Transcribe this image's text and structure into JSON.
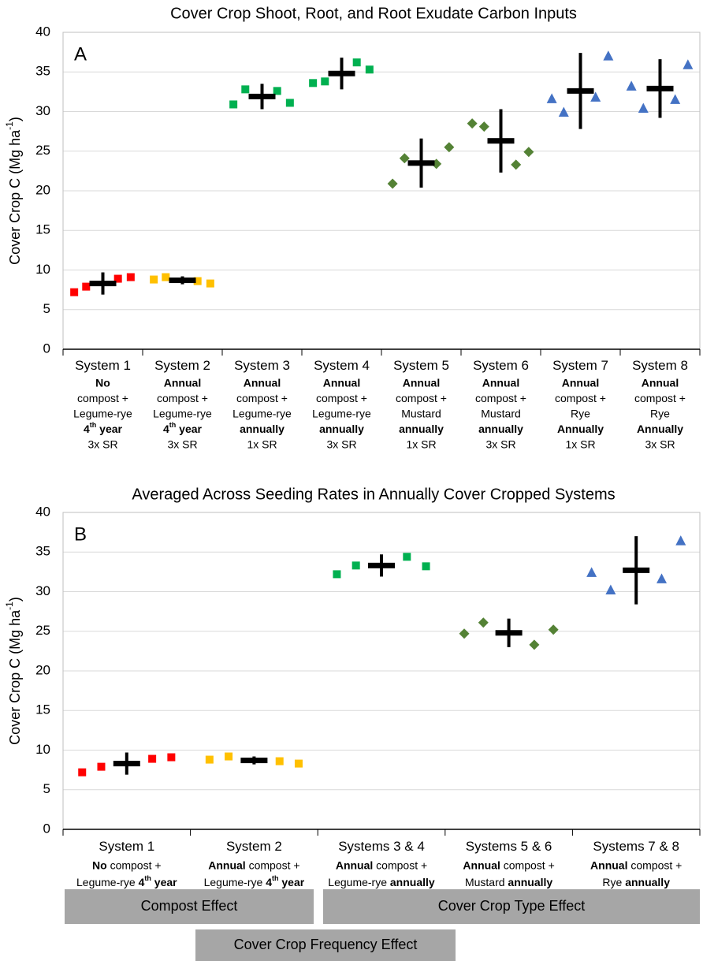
{
  "chart_data": [
    {
      "type": "strip",
      "title": "Cover Crop Shoot, Root, and Root Exudate Carbon Inputs",
      "panel_label": "A",
      "ylabel": [
        "Cover Crop C (Mg ha",
        {
          "text": "-1",
          "style": "sup"
        },
        ")"
      ],
      "ylim": [
        0,
        40
      ],
      "yticks": [
        0,
        5,
        10,
        15,
        20,
        25,
        30,
        35,
        40
      ],
      "grid": true,
      "groups": [
        {
          "label": [
            [
              "System 1"
            ],
            [
              {
                "text": "No",
                "style": "bold"
              }
            ],
            [
              "compost +"
            ],
            [
              "Legume-rye"
            ],
            [
              {
                "text": "4",
                "style": "bold"
              },
              {
                "text": "th",
                "style": "boldsup"
              },
              {
                "text": " year",
                "style": "bold"
              }
            ],
            [
              "3x SR"
            ]
          ],
          "color": "#ff0000",
          "marker": "square",
          "values": [
            7.2,
            7.9,
            8.9,
            9.1
          ],
          "mean": 8.3,
          "error": 1.4
        },
        {
          "label": [
            [
              "System 2"
            ],
            [
              {
                "text": "Annual",
                "style": "bold"
              }
            ],
            [
              "compost +"
            ],
            [
              "Legume-rye"
            ],
            [
              {
                "text": "4",
                "style": "bold"
              },
              {
                "text": "th",
                "style": "boldsup"
              },
              {
                "text": " year",
                "style": "bold"
              }
            ],
            [
              "3x SR"
            ]
          ],
          "color": "#ffc000",
          "marker": "square",
          "values": [
            8.8,
            9.1,
            8.6,
            8.3
          ],
          "mean": 8.7,
          "error": 0.5
        },
        {
          "label": [
            [
              "System 3"
            ],
            [
              {
                "text": "Annual",
                "style": "bold"
              }
            ],
            [
              "compost +"
            ],
            [
              "Legume-rye"
            ],
            [
              {
                "text": "annually",
                "style": "bold"
              }
            ],
            [
              "1x SR"
            ]
          ],
          "color": "#00b050",
          "marker": "square",
          "values": [
            30.9,
            32.8,
            32.6,
            31.1
          ],
          "mean": 31.9,
          "error": 1.6
        },
        {
          "label": [
            [
              "System 4"
            ],
            [
              {
                "text": "Annual",
                "style": "bold"
              }
            ],
            [
              "compost +"
            ],
            [
              "Legume-rye"
            ],
            [
              {
                "text": "annually",
                "style": "bold"
              }
            ],
            [
              "3x SR"
            ]
          ],
          "color": "#00b050",
          "marker": "square",
          "values": [
            33.6,
            33.8,
            36.2,
            35.3
          ],
          "mean": 34.8,
          "error": 2.0
        },
        {
          "label": [
            [
              "System 5"
            ],
            [
              {
                "text": "Annual",
                "style": "bold"
              }
            ],
            [
              "compost +"
            ],
            [
              "Mustard"
            ],
            [
              {
                "text": "annually",
                "style": "bold"
              }
            ],
            [
              "1x SR"
            ]
          ],
          "color": "#548235",
          "marker": "diamond",
          "values": [
            20.9,
            24.1,
            23.4,
            25.5
          ],
          "mean": 23.5,
          "error": 3.1
        },
        {
          "label": [
            [
              "System 6"
            ],
            [
              {
                "text": "Annual",
                "style": "bold"
              }
            ],
            [
              "compost +"
            ],
            [
              "Mustard"
            ],
            [
              {
                "text": "annually",
                "style": "bold"
              }
            ],
            [
              "3x SR"
            ]
          ],
          "color": "#548235",
          "marker": "diamond",
          "values": [
            28.5,
            28.1,
            23.3,
            24.9
          ],
          "mean": 26.3,
          "error": 4.0
        },
        {
          "label": [
            [
              "System 7"
            ],
            [
              {
                "text": "Annual",
                "style": "bold"
              }
            ],
            [
              "compost +"
            ],
            [
              "Rye"
            ],
            [
              {
                "text": "Annually",
                "style": "bold"
              }
            ],
            [
              "1x SR"
            ]
          ],
          "color": "#4472c4",
          "marker": "triangle",
          "values": [
            31.6,
            29.9,
            31.8,
            37.0
          ],
          "mean": 32.6,
          "error": 4.8
        },
        {
          "label": [
            [
              "System 8"
            ],
            [
              {
                "text": "Annual",
                "style": "bold"
              }
            ],
            [
              "compost +"
            ],
            [
              "Rye"
            ],
            [
              {
                "text": "Annually",
                "style": "bold"
              }
            ],
            [
              "3x SR"
            ]
          ],
          "color": "#4472c4",
          "marker": "triangle",
          "values": [
            33.2,
            30.4,
            31.5,
            35.9
          ],
          "mean": 32.9,
          "error": 3.7
        }
      ]
    },
    {
      "type": "strip",
      "title": "Averaged Across Seeding Rates in Annually Cover Cropped Systems",
      "panel_label": "B",
      "ylabel": [
        "Cover Crop C (Mg ha",
        {
          "text": "-1",
          "style": "sup"
        },
        ")"
      ],
      "ylim": [
        0,
        40
      ],
      "yticks": [
        0,
        5,
        10,
        15,
        20,
        25,
        30,
        35,
        40
      ],
      "grid": true,
      "groups": [
        {
          "label": [
            [
              "System 1"
            ],
            [
              {
                "text": "No",
                "style": "bold"
              },
              " compost +"
            ],
            [
              "Legume-rye ",
              {
                "text": "4",
                "style": "bold"
              },
              {
                "text": "th",
                "style": "boldsup"
              },
              {
                "text": " year",
                "style": "bold"
              }
            ]
          ],
          "color": "#ff0000",
          "marker": "square",
          "values": [
            7.2,
            7.9,
            8.9,
            9.1
          ],
          "mean": 8.3,
          "error": 1.4
        },
        {
          "label": [
            [
              "System 2"
            ],
            [
              {
                "text": "Annual",
                "style": "bold"
              },
              " compost +"
            ],
            [
              "Legume-rye ",
              {
                "text": "4",
                "style": "bold"
              },
              {
                "text": "th",
                "style": "boldsup"
              },
              {
                "text": " year",
                "style": "bold"
              }
            ]
          ],
          "color": "#ffc000",
          "marker": "square",
          "values": [
            8.8,
            9.2,
            8.6,
            8.3
          ],
          "mean": 8.7,
          "error": 0.5
        },
        {
          "label": [
            [
              "Systems 3 & 4"
            ],
            [
              {
                "text": "Annual",
                "style": "bold"
              },
              " compost +"
            ],
            [
              "Legume-rye ",
              {
                "text": "annually",
                "style": "bold"
              }
            ]
          ],
          "color": "#00b050",
          "marker": "square",
          "values": [
            32.2,
            33.3,
            34.4,
            33.2
          ],
          "mean": 33.3,
          "error": 1.4
        },
        {
          "label": [
            [
              "Systems 5 & 6"
            ],
            [
              {
                "text": "Annual",
                "style": "bold"
              },
              " compost +"
            ],
            [
              "Mustard ",
              {
                "text": "annually",
                "style": "bold"
              }
            ]
          ],
          "color": "#548235",
          "marker": "diamond",
          "values": [
            24.7,
            26.1,
            23.3,
            25.2
          ],
          "mean": 24.8,
          "error": 1.8
        },
        {
          "label": [
            [
              "Systems 7 & 8"
            ],
            [
              {
                "text": "Annual",
                "style": "bold"
              },
              " compost +"
            ],
            [
              "Rye ",
              {
                "text": "annually",
                "style": "bold"
              }
            ]
          ],
          "color": "#4472c4",
          "marker": "triangle",
          "values": [
            32.4,
            30.2,
            31.6,
            36.4
          ],
          "mean": 32.7,
          "error": 4.3
        }
      ]
    }
  ],
  "effects": [
    "Compost Effect",
    "Cover Crop Type Effect",
    "Cover Crop Frequency Effect"
  ]
}
